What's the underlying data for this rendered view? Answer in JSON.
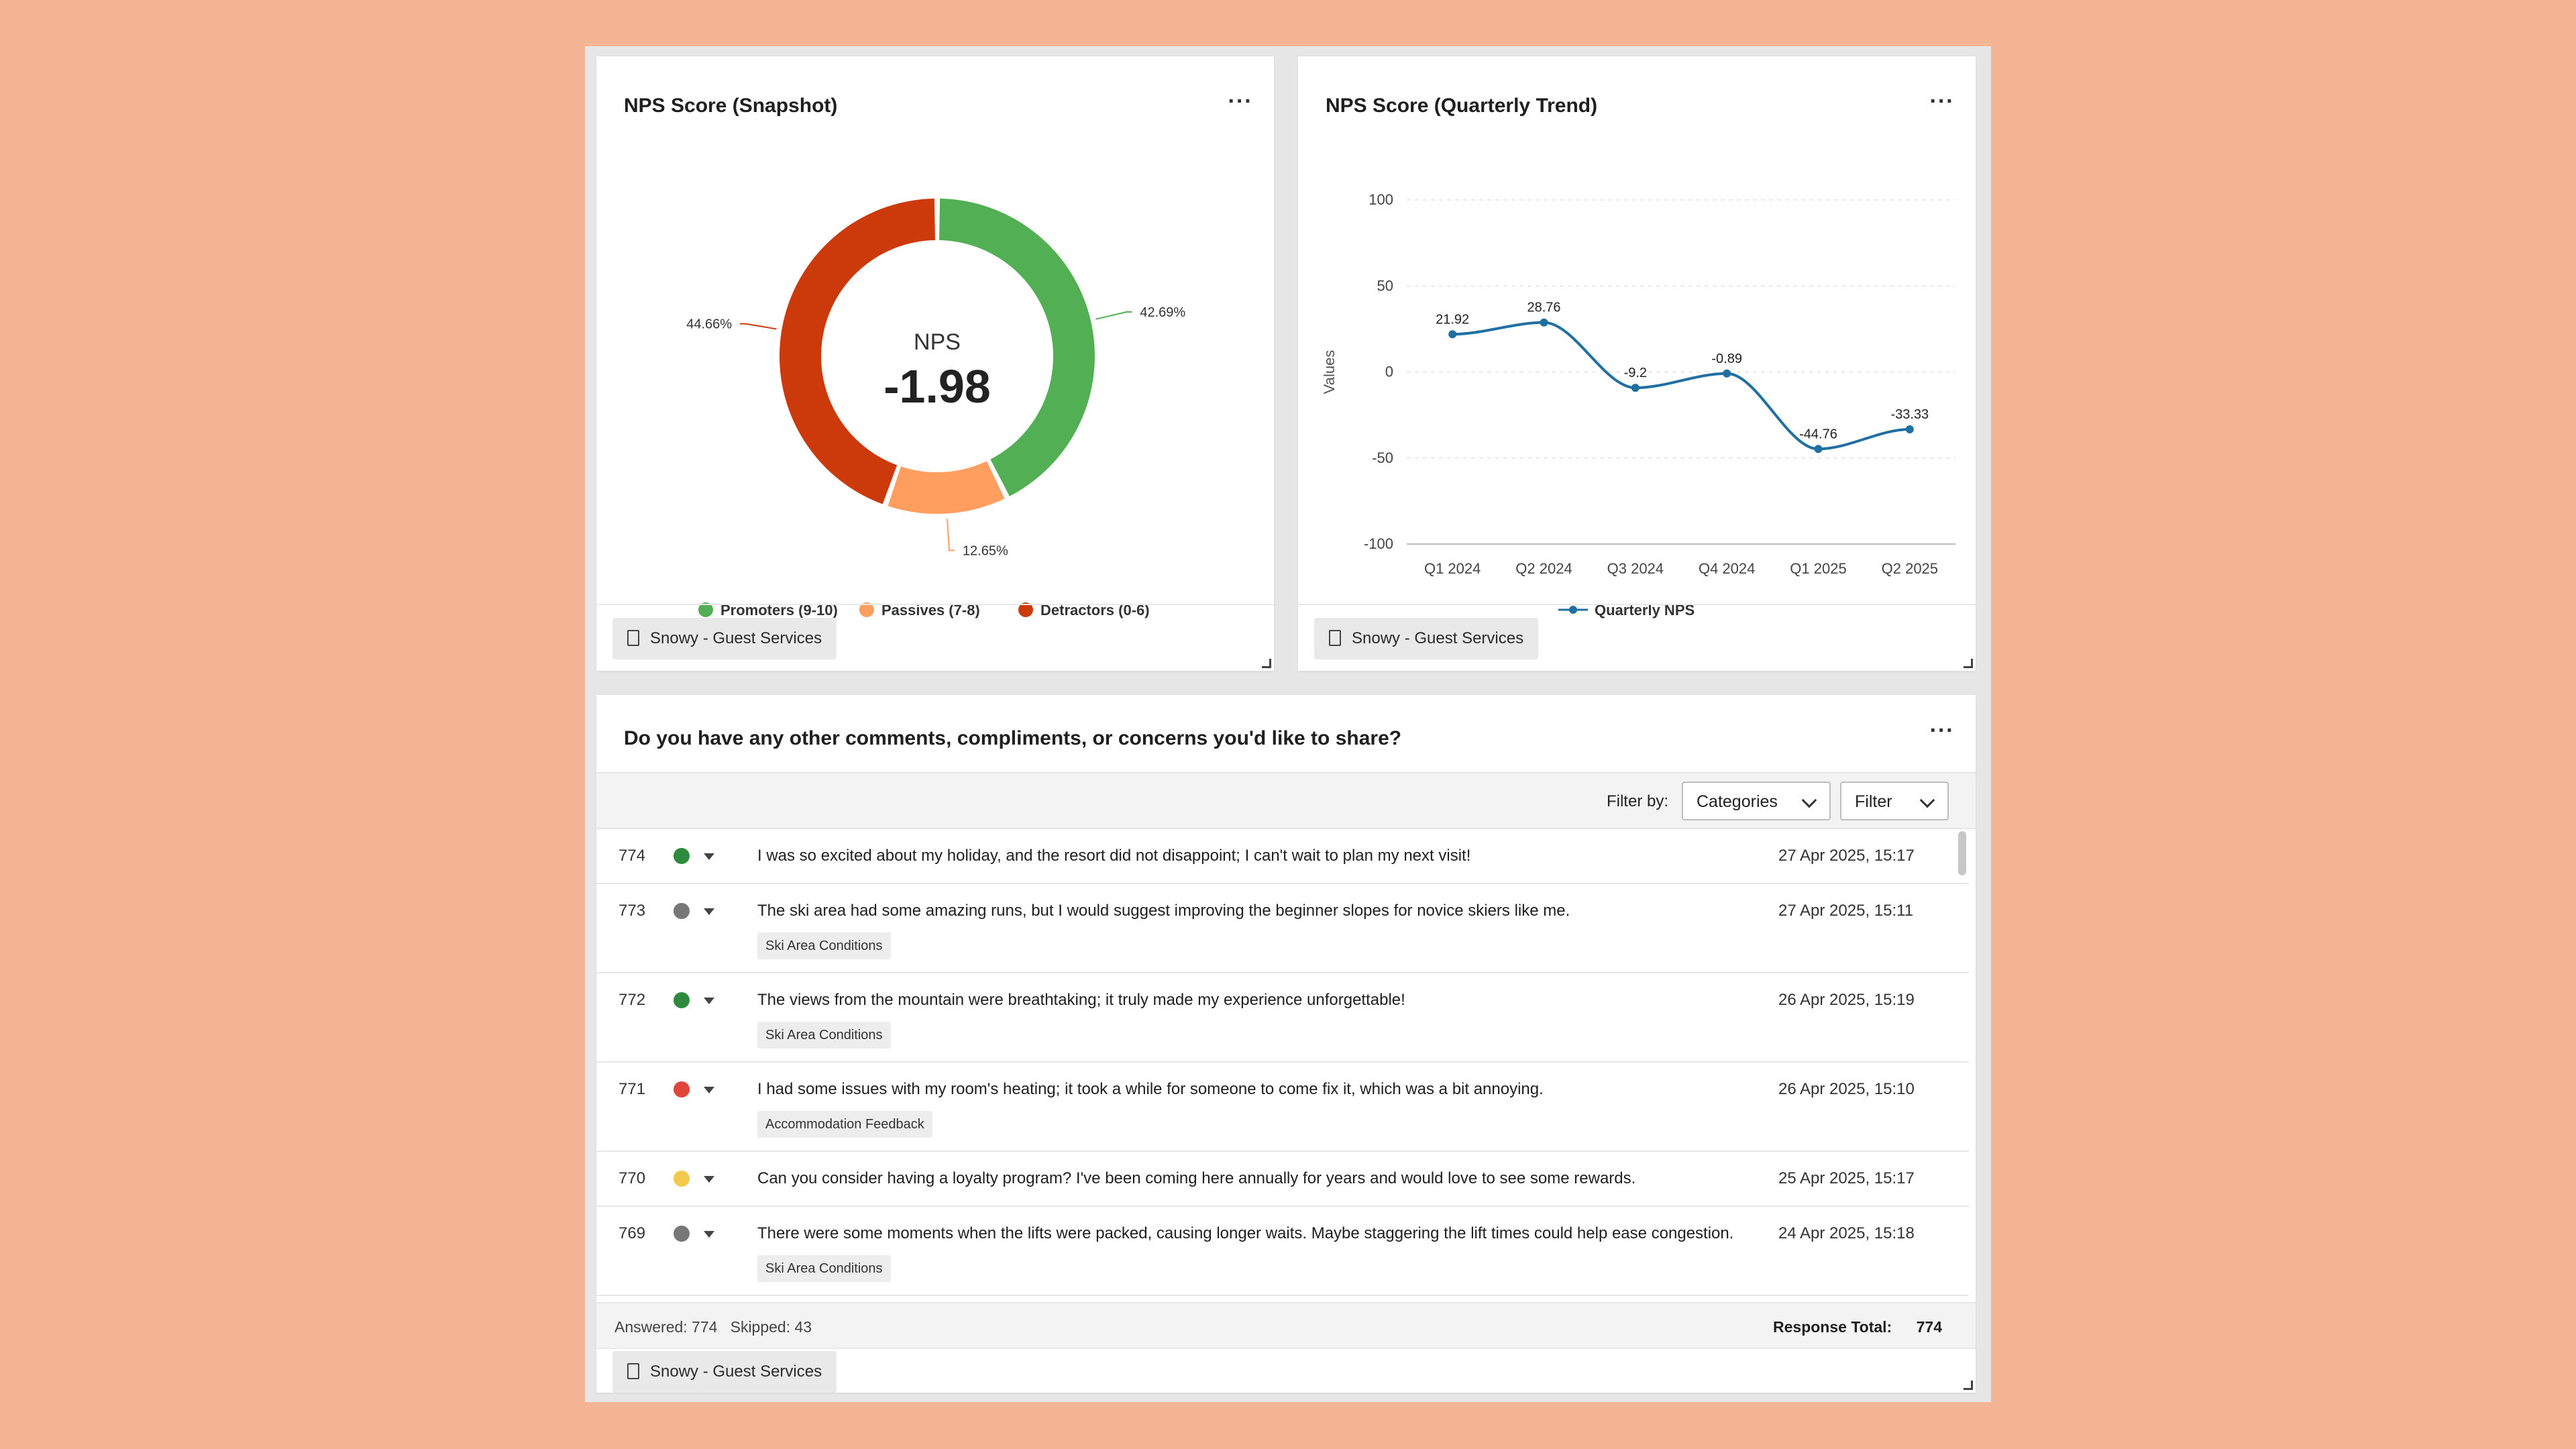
{
  "colors": {
    "background": "#F4B594",
    "promoters": "#52AF53",
    "passives": "#FF9E5E",
    "detractors": "#CC3A0B",
    "trend_line": "#1F6FA3"
  },
  "nps_card": {
    "title": "NPS Score (Snapshot)",
    "menu_icon": "ellipsis-icon",
    "center_label": "NPS",
    "center_value": "-1.98",
    "source": "Snowy - Guest Services"
  },
  "trend_card": {
    "title": "NPS Score (Quarterly Trend)",
    "menu_icon": "ellipsis-icon",
    "source": "Snowy - Guest Services"
  },
  "comments_card": {
    "title": "Do you have any other comments, compliments, or concerns you'd like to share?",
    "filter_label": "Filter by:",
    "categories_select": "Categories",
    "filter_select": "Filter",
    "rows": [
      {
        "id": "774",
        "sentiment": "positive",
        "text": "I was so excited about my holiday, and the resort did not disappoint; I can't wait to plan my next visit!",
        "date": "27 Apr 2025, 15:17",
        "tag": ""
      },
      {
        "id": "773",
        "sentiment": "neutral",
        "text": "The ski area had some amazing runs, but I would suggest improving the beginner slopes for novice skiers like me.",
        "date": "27 Apr 2025, 15:11",
        "tag": "Ski Area Conditions"
      },
      {
        "id": "772",
        "sentiment": "positive",
        "text": "The views from the mountain were breathtaking; it truly made my experience unforgettable!",
        "date": "26 Apr 2025, 15:19",
        "tag": "Ski Area Conditions"
      },
      {
        "id": "771",
        "sentiment": "negative",
        "text": "I had some issues with my room's heating; it took a while for someone to come fix it, which was a bit annoying.",
        "date": "26 Apr 2025, 15:10",
        "tag": "Accommodation Feedback"
      },
      {
        "id": "770",
        "sentiment": "mixed",
        "text": "Can you consider having a loyalty program? I've been coming here annually for years and would love to see some rewards.",
        "date": "25 Apr 2025, 15:17",
        "tag": ""
      },
      {
        "id": "769",
        "sentiment": "neutral",
        "text": "There were some moments when the lifts were packed, causing longer waits. Maybe staggering the lift times could help ease congestion.",
        "date": "24 Apr 2025, 15:18",
        "tag": "Ski Area Conditions"
      }
    ],
    "summary": {
      "answered": "Answered: 774",
      "skipped": "Skipped: 43",
      "total_label": "Response Total:",
      "total_value": "774"
    },
    "source": "Snowy - Guest Services"
  },
  "chart_data": [
    {
      "type": "pie",
      "categories": [
        "Promoters (9-10)",
        "Passives (7-8)",
        "Detractors (0-6)"
      ],
      "values": [
        42.69,
        12.65,
        44.66
      ],
      "labels": [
        "42.69%",
        "12.65%",
        "44.66%"
      ],
      "legend_position": "bottom"
    },
    {
      "type": "line",
      "categories": [
        "Q1 2024",
        "Q2 2024",
        "Q3 2024",
        "Q4 2024",
        "Q1 2025",
        "Q2 2025"
      ],
      "series": [
        {
          "name": "Quarterly NPS",
          "values": [
            21.92,
            28.76,
            -9.2,
            -0.89,
            -44.76,
            -33.33
          ]
        }
      ],
      "data_labels": [
        "21.92",
        "28.76",
        "-9.2",
        "-0.89",
        "-44.76",
        "-33.33"
      ],
      "ylabel": "Values",
      "ylim": [
        -100,
        100
      ],
      "yticks": [
        "100",
        "50",
        "0",
        "-50",
        "-100"
      ],
      "grid": true,
      "legend_position": "bottom"
    }
  ]
}
